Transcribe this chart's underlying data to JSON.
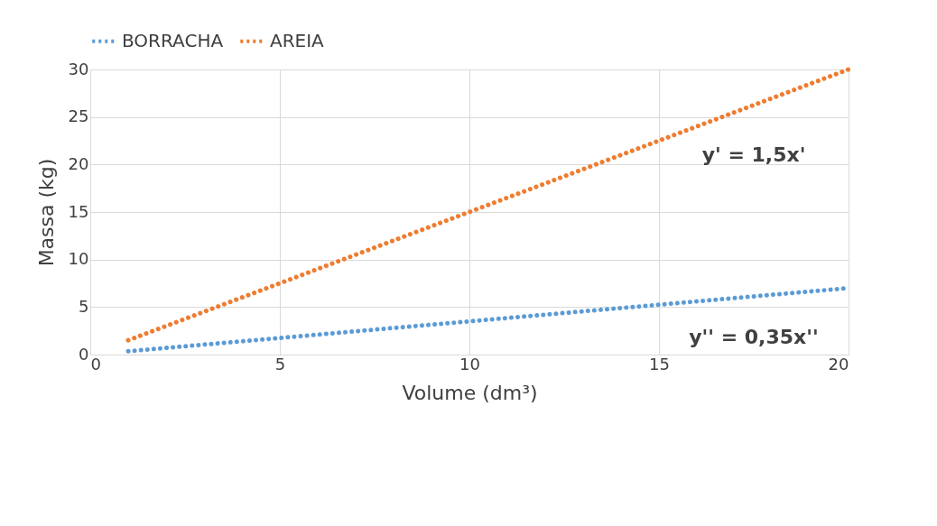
{
  "chart_data": {
    "type": "line",
    "xlabel": "Volume (dm³)",
    "ylabel": "Massa (kg)",
    "xlim": [
      0,
      20
    ],
    "xticks": [
      0,
      5,
      10,
      15,
      20
    ],
    "ylim": [
      0,
      30
    ],
    "yticks": [
      0,
      5,
      10,
      15,
      20,
      25,
      30
    ],
    "x": [
      1,
      20
    ],
    "grid": true,
    "legend": "top",
    "line_style": "dotted",
    "marker": "none",
    "series": [
      {
        "name": "BORRACHA",
        "color": "#5b9bd5",
        "values": [
          0.35,
          7
        ]
      },
      {
        "name": "AREIA",
        "color": "#ed7d31",
        "values": [
          1.5,
          30
        ]
      }
    ],
    "annotations": [
      "y' = 1,5x'",
      "y'' = 0,35x''"
    ]
  }
}
